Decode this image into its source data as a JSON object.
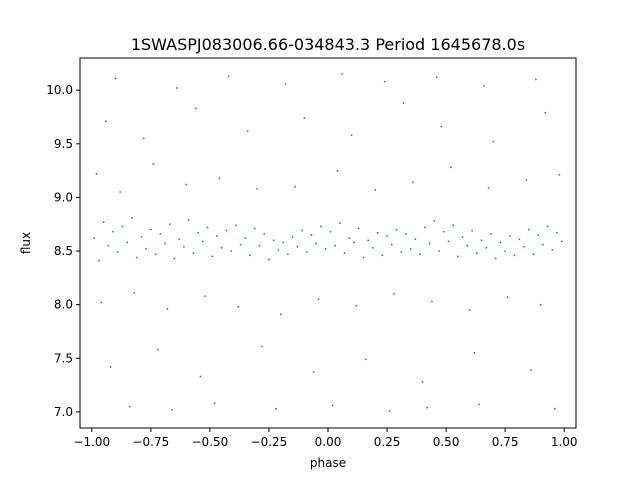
{
  "chart_data": {
    "type": "scatter",
    "title": "1SWASPJ083006.66-034843.3 Period 1645678.0s",
    "xlabel": "phase",
    "ylabel": "flux",
    "xlim": [
      -1.05,
      1.05
    ],
    "ylim": [
      6.85,
      10.3
    ],
    "x_ticks": [
      -1.0,
      -0.75,
      -0.5,
      -0.25,
      0.0,
      0.25,
      0.5,
      0.75,
      1.0
    ],
    "x_tick_labels": [
      "−1.00",
      "−0.75",
      "−0.50",
      "−0.25",
      "0.00",
      "0.25",
      "0.50",
      "0.75",
      "1.00"
    ],
    "y_ticks": [
      7.0,
      7.5,
      8.0,
      8.5,
      9.0,
      9.5,
      10.0
    ],
    "y_tick_labels": [
      "7.0",
      "7.5",
      "8.0",
      "8.5",
      "9.0",
      "9.5",
      "10.0"
    ],
    "grid": false,
    "legend": "none",
    "marker_color": "#1f77b4",
    "series": [
      {
        "points": [
          [
            -0.99,
            8.62
          ],
          [
            -0.97,
            8.41
          ],
          [
            -0.95,
            8.77
          ],
          [
            -0.93,
            8.55
          ],
          [
            -0.91,
            8.68
          ],
          [
            -0.89,
            8.49
          ],
          [
            -0.87,
            8.73
          ],
          [
            -0.85,
            8.58
          ],
          [
            -0.83,
            8.81
          ],
          [
            -0.81,
            8.44
          ],
          [
            -0.79,
            8.63
          ],
          [
            -0.77,
            8.52
          ],
          [
            -0.75,
            8.7
          ],
          [
            -0.73,
            8.47
          ],
          [
            -0.71,
            8.66
          ],
          [
            -0.69,
            8.57
          ],
          [
            -0.67,
            8.75
          ],
          [
            -0.65,
            8.43
          ],
          [
            -0.63,
            8.61
          ],
          [
            -0.61,
            8.54
          ],
          [
            -0.59,
            8.79
          ],
          [
            -0.57,
            8.48
          ],
          [
            -0.55,
            8.67
          ],
          [
            -0.53,
            8.59
          ],
          [
            -0.51,
            8.72
          ],
          [
            -0.49,
            8.45
          ],
          [
            -0.47,
            8.64
          ],
          [
            -0.45,
            8.53
          ],
          [
            -0.43,
            8.69
          ],
          [
            -0.41,
            8.5
          ],
          [
            -0.39,
            8.74
          ],
          [
            -0.37,
            8.56
          ],
          [
            -0.35,
            8.62
          ],
          [
            -0.33,
            8.46
          ],
          [
            -0.31,
            8.71
          ],
          [
            -0.29,
            8.55
          ],
          [
            -0.27,
            8.66
          ],
          [
            -0.25,
            8.42
          ],
          [
            -0.23,
            8.6
          ],
          [
            -0.21,
            8.51
          ],
          [
            -0.19,
            8.58
          ],
          [
            -0.17,
            8.47
          ],
          [
            -0.15,
            8.63
          ],
          [
            -0.13,
            8.54
          ],
          [
            -0.11,
            8.69
          ],
          [
            -0.09,
            8.49
          ],
          [
            -0.07,
            8.65
          ],
          [
            -0.05,
            8.57
          ],
          [
            -0.03,
            8.73
          ],
          [
            -0.01,
            8.52
          ],
          [
            0.01,
            8.68
          ],
          [
            0.03,
            8.55
          ],
          [
            0.05,
            8.76
          ],
          [
            0.07,
            8.48
          ],
          [
            0.09,
            8.62
          ],
          [
            0.11,
            8.58
          ],
          [
            0.13,
            8.71
          ],
          [
            0.15,
            8.44
          ],
          [
            0.17,
            8.6
          ],
          [
            0.19,
            8.53
          ],
          [
            0.21,
            8.67
          ],
          [
            0.23,
            8.46
          ],
          [
            0.25,
            8.64
          ],
          [
            0.27,
            8.56
          ],
          [
            0.29,
            8.7
          ],
          [
            0.31,
            8.49
          ],
          [
            0.33,
            8.66
          ],
          [
            0.35,
            8.52
          ],
          [
            0.37,
            8.61
          ],
          [
            0.39,
            8.47
          ],
          [
            0.41,
            8.72
          ],
          [
            0.43,
            8.57
          ],
          [
            0.45,
            8.78
          ],
          [
            0.47,
            8.5
          ],
          [
            0.49,
            8.68
          ],
          [
            0.51,
            8.59
          ],
          [
            0.53,
            8.74
          ],
          [
            0.55,
            8.45
          ],
          [
            0.57,
            8.63
          ],
          [
            0.59,
            8.55
          ],
          [
            0.61,
            8.69
          ],
          [
            0.63,
            8.48
          ],
          [
            0.65,
            8.6
          ],
          [
            0.67,
            8.53
          ],
          [
            0.69,
            8.66
          ],
          [
            0.71,
            8.43
          ],
          [
            0.73,
            8.58
          ],
          [
            0.75,
            8.5
          ],
          [
            0.77,
            8.64
          ],
          [
            0.79,
            8.46
          ],
          [
            0.81,
            8.61
          ],
          [
            0.83,
            8.54
          ],
          [
            0.85,
            8.7
          ],
          [
            0.87,
            8.47
          ],
          [
            0.89,
            8.65
          ],
          [
            0.91,
            8.56
          ],
          [
            0.93,
            8.73
          ],
          [
            0.95,
            8.51
          ],
          [
            0.97,
            8.67
          ],
          [
            0.99,
            8.59
          ],
          [
            -0.98,
            9.22
          ],
          [
            -0.88,
            9.05
          ],
          [
            -0.74,
            9.31
          ],
          [
            -0.6,
            9.12
          ],
          [
            -0.46,
            9.18
          ],
          [
            -0.3,
            9.08
          ],
          [
            -0.14,
            9.1
          ],
          [
            0.04,
            9.25
          ],
          [
            0.2,
            9.07
          ],
          [
            0.36,
            9.14
          ],
          [
            0.52,
            9.28
          ],
          [
            0.68,
            9.09
          ],
          [
            0.84,
            9.16
          ],
          [
            0.98,
            9.21
          ],
          [
            -0.96,
            8.02
          ],
          [
            -0.82,
            8.11
          ],
          [
            -0.68,
            7.96
          ],
          [
            -0.52,
            8.08
          ],
          [
            -0.38,
            7.98
          ],
          [
            -0.2,
            7.91
          ],
          [
            -0.04,
            8.05
          ],
          [
            0.12,
            7.99
          ],
          [
            0.28,
            8.1
          ],
          [
            0.44,
            8.03
          ],
          [
            0.6,
            7.95
          ],
          [
            0.76,
            8.07
          ],
          [
            0.9,
            8.0
          ],
          [
            -0.94,
            9.71
          ],
          [
            -0.78,
            9.55
          ],
          [
            -0.56,
            9.83
          ],
          [
            -0.34,
            9.62
          ],
          [
            -0.1,
            9.74
          ],
          [
            0.1,
            9.58
          ],
          [
            0.32,
            9.88
          ],
          [
            0.48,
            9.66
          ],
          [
            0.7,
            9.52
          ],
          [
            0.92,
            9.79
          ],
          [
            -0.92,
            7.42
          ],
          [
            -0.72,
            7.58
          ],
          [
            -0.54,
            7.33
          ],
          [
            -0.28,
            7.61
          ],
          [
            -0.06,
            7.37
          ],
          [
            0.16,
            7.49
          ],
          [
            0.4,
            7.28
          ],
          [
            0.62,
            7.55
          ],
          [
            0.86,
            7.39
          ],
          [
            -0.9,
            10.11
          ],
          [
            -0.64,
            10.02
          ],
          [
            -0.42,
            10.13
          ],
          [
            -0.18,
            10.06
          ],
          [
            0.06,
            10.15
          ],
          [
            0.24,
            10.08
          ],
          [
            0.46,
            10.12
          ],
          [
            0.66,
            10.04
          ],
          [
            0.88,
            10.1
          ],
          [
            -0.84,
            7.05
          ],
          [
            -0.66,
            7.02
          ],
          [
            -0.48,
            7.08
          ],
          [
            -0.22,
            7.03
          ],
          [
            0.02,
            7.06
          ],
          [
            0.26,
            7.01
          ],
          [
            0.42,
            7.04
          ],
          [
            0.64,
            7.07
          ],
          [
            0.96,
            7.03
          ]
        ]
      }
    ]
  }
}
